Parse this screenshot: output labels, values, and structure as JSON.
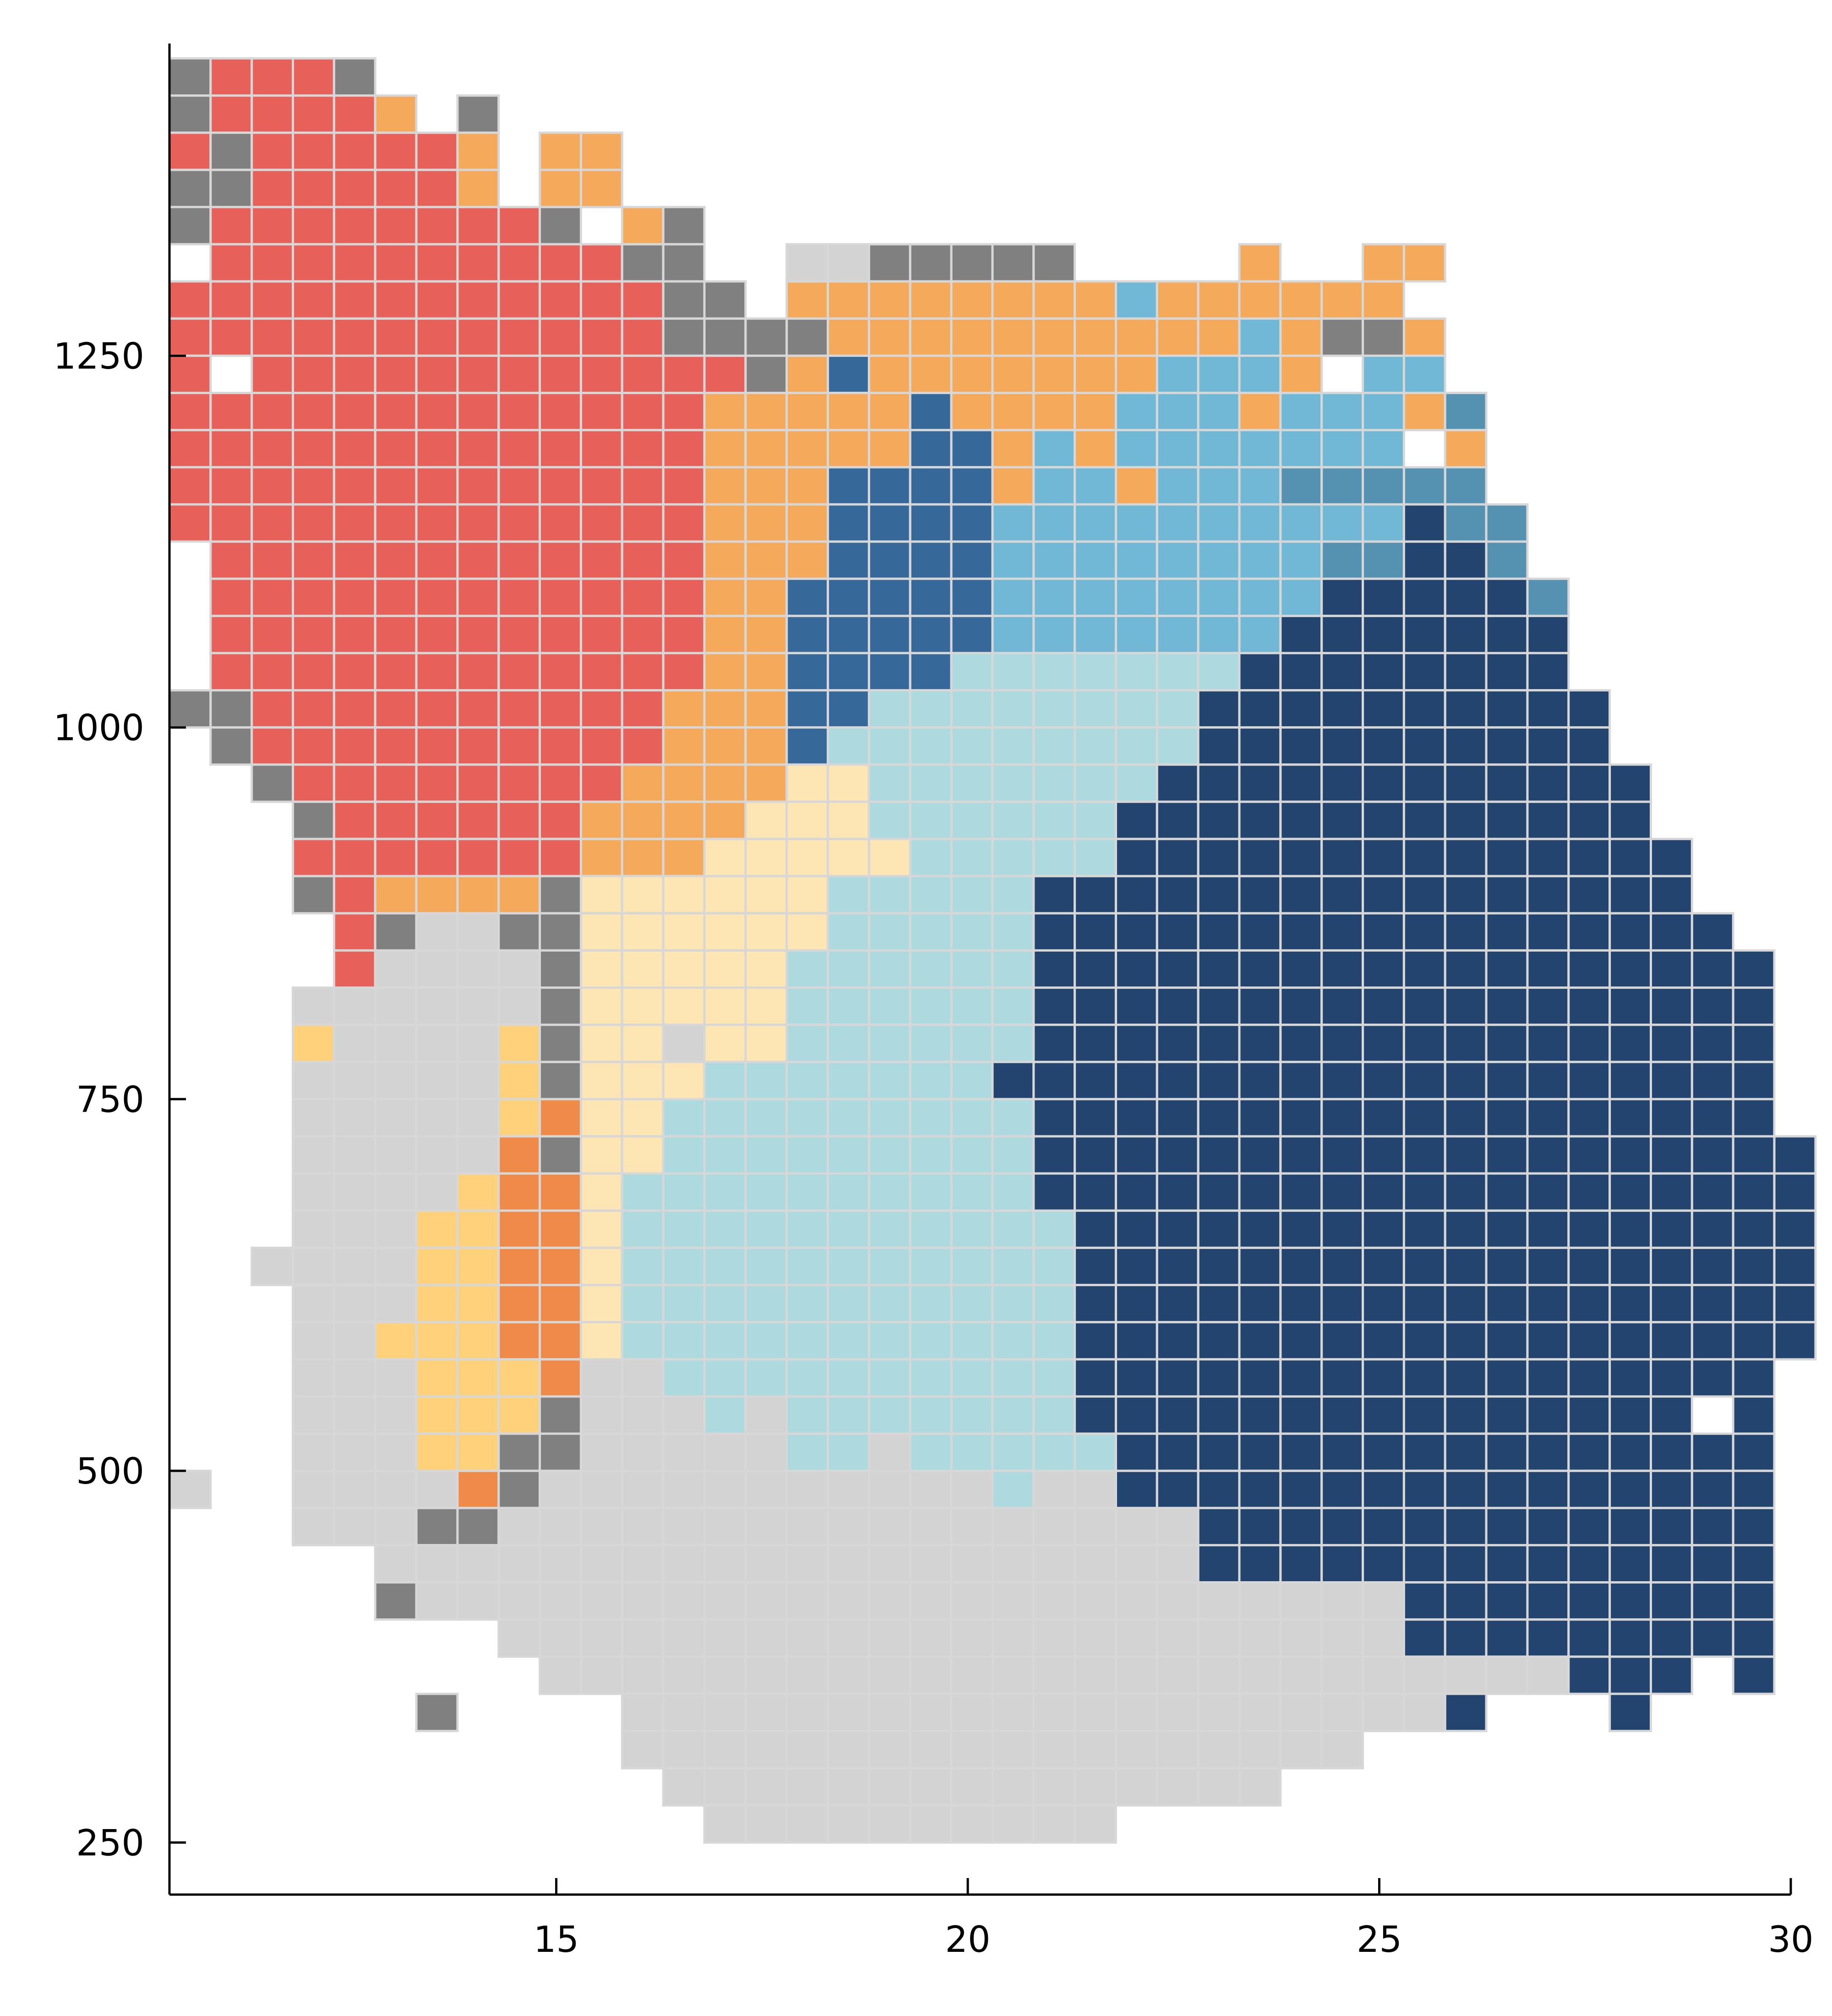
{
  "chart_data": {
    "type": "heatmap",
    "title": "",
    "xlabel": "",
    "ylabel": "",
    "xlim": [
      10.3,
      30
    ],
    "ylim": [
      215,
      1460
    ],
    "x_ticks": [
      {
        "value": 15,
        "label": "15"
      },
      {
        "value": 20,
        "label": "20"
      },
      {
        "value": 25,
        "label": "25"
      },
      {
        "value": 30,
        "label": "30"
      }
    ],
    "y_ticks": [
      {
        "value": 250,
        "label": "250"
      },
      {
        "value": 500,
        "label": "500"
      },
      {
        "value": 750,
        "label": "750"
      },
      {
        "value": 1000,
        "label": "1000"
      },
      {
        "value": 1250,
        "label": "1250"
      }
    ],
    "grid": false,
    "legend": "none",
    "cell_grid": {
      "x0": 10.3,
      "dx": 0.5,
      "y_top": 1450,
      "dy": 25,
      "col_count": 40,
      "row_count": 48
    },
    "palette": {
      "A": "#e8605a",
      "B": "#f5a95b",
      "C": "#808080",
      "D": "#d3d3d3",
      "E": "#fed17a",
      "F": "#f08a48",
      "G": "#fde5b4",
      "H": "#acdade",
      "I": "#70b8d5",
      "J": "#5592b2",
      "K": "#37689a",
      "L": "#22446e"
    },
    "cell_rows": [
      "CAAAC",
      "CAAAAB.C",
      "ACAAAAAB.BB",
      "CCAAAAAB.BB",
      "CAAAAAAAAC.BC",
      ".AAAAAAAAAACC..DDCCCCC....B..BB",
      "AAAAAAAAAAAACC.BBBBBBBBIBBBBBB",
      "AAAAAAAAAAAACCCCBBBBBBBBBBIBCCB",
      "A.AAAAAAAAAAAACBKBBBBBBBIIIB.II",
      "AAAAAAAAAAAAABBBBBKBBBBIIIBIIIBJ",
      "AAAAAAAAAAAAABBBBBKKBIBIIIIIII.B",
      "AAAAAAAAAAAAABBBKKKKBIIBIIIJJJJJ",
      "AAAAAAAAAAAAABBBKKKKIIIIIIIIIILJJ",
      ".AAAAAAAAAAAABBBKKKKIIIIIIIIJJLLJ",
      ".AAAAAAAAAAAABBKKKKKIIIIIIIILLLLLJ",
      ".AAAAAAAAAAAABBKKKKKIIIIIIILLLLLLL",
      ".AAAAAAAAAAAABBKKKKHHHHHHHLLLLLLLL",
      "CCAAAAAAAAAABBBKKHHHHHHHHLLLLLLLLLL",
      ".CAAAAAAAAAABBBKHHHHHHHHHLLLLLLLLLL",
      "..CAAAAAAAABBBBGGHHHHHHHLLLLLLLLLLLL",
      "...CAAAAAABBBBGGGHHHHHHLLLLLLLLLLLLL",
      "...AAAAAAABBBGGGGGHHHHHLLLLLLLLLLLLLL",
      "...CABBBBCGGGGGGHHHHHLLLLLLLLLLLLLLLL",
      "....ACDDCCGGGGGGHHHHHLLLLLLLLLLLLLLLLL",
      "....ADDDDCGGGGGHHHHHHLLLLLLLLLLLLLLLLLL",
      "...DDDDDDCGGGGGHHHHHHLLLLLLLLLLLLLLLLLL",
      "...EDDDDECGGDGGHHHHHHLLLLLLLLLLLLLLLLLL",
      "...DDDDDECGGGHHHHHHHLLLLLLLLLLLLLLLLLLL",
      "...DDDDDEFGGHHHHHHHHHLLLLLLLLLLLLLLLLLL",
      "...DDDDDFCGGHHHHHHHHHLLLLLLLLLLLLLLLLLLL",
      "...DDDDEFFGHHHHHHHHHHLLLLLLLLLLLLLLLLLLL",
      "...DDDEEFFGHHHHHHHHHHHLLLLLLLLLLLLLLLLLL",
      "..DDDDEEFFGHHHHHHHHHHHLLLLLLLLLLLLLLLLLL",
      "...DDDEEFFGHHHHHHHHHHHLLLLLLLLLLLLLLLLLL",
      "...DDEEEFFGHHHHHHHHHHHLLLLLLLLLLLLLLLLLL",
      "...DDDEEEFDDHHHHHHHHHHLLLLLLLLLLLLLLLLL",
      "...DDDEEECDDDHDHHHHHHHLLLLLLLLLLLLLLL.L",
      "...DDDEECCDDDDDHHDHHHHHLLLLLLLLLLLLLLLL",
      "D..DDDDFCDDDDDDDDDDDHDDLLLLLLLLLLLLLLLL",
      "...DDDCCDDDDDDDDDDDDDDDDDLLLLLLLLLLLLLL",
      ".....DDDDDDDDDDDDDDDDDDDDLLLLLLLLLLLLLL",
      ".....CDDDDDDDDDDDDDDDDDDDDDDDDLLLLLLLLL",
      "........DDDDDDDDDDDDDDDDDDDDDDLLLLLLLLL",
      ".........DDDDDDDDDDDDDDDDDDDDDDDDDLLL.L",
      "......C....DDDDDDDDDDDDDDDDDDDDL...L",
      "...........DDDDDDDDDDDDDDDDDD",
      "............DDDDDDDDDDDDDDD",
      ".............DDDDDDDDDD"
    ]
  }
}
